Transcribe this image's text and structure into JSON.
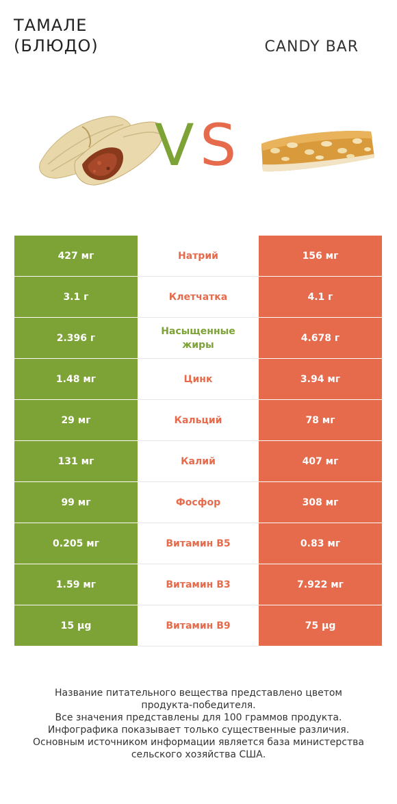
{
  "header": {
    "left_title_line1": "ТАМАЛЕ",
    "left_title_line2": "(БЛЮДО)",
    "right_title": "CANDY BAR",
    "vs_v": "V",
    "vs_s": "S"
  },
  "images": {
    "left": "tamale-image",
    "right": "candy-bar-image"
  },
  "colors": {
    "green": "#7da236",
    "red": "#e56b4c"
  },
  "rows": [
    {
      "left": "427 мг",
      "label": "Натрий",
      "right": "156 мг",
      "winner": "red"
    },
    {
      "left": "3.1 г",
      "label": "Клетчатка",
      "right": "4.1 г",
      "winner": "red"
    },
    {
      "left": "2.396 г",
      "label": "Насыщенные жиры",
      "right": "4.678 г",
      "winner": "green"
    },
    {
      "left": "1.48 мг",
      "label": "Цинк",
      "right": "3.94 мг",
      "winner": "red"
    },
    {
      "left": "29 мг",
      "label": "Кальций",
      "right": "78 мг",
      "winner": "red"
    },
    {
      "left": "131 мг",
      "label": "Калий",
      "right": "407 мг",
      "winner": "red"
    },
    {
      "left": "99 мг",
      "label": "Фосфор",
      "right": "308 мг",
      "winner": "red"
    },
    {
      "left": "0.205 мг",
      "label": "Витамин B5",
      "right": "0.83 мг",
      "winner": "red"
    },
    {
      "left": "1.59 мг",
      "label": "Витамин B3",
      "right": "7.922 мг",
      "winner": "red"
    },
    {
      "left": "15 µg",
      "label": "Витамин B9",
      "right": "75 µg",
      "winner": "red"
    }
  ],
  "footer": {
    "line1": "Название питательного вещества представлено цветом",
    "line2": "продукта-победителя.",
    "line3": "Все значения представлены для 100 граммов продукта.",
    "line4": "Инфографика показывает только существенные различия.",
    "line5": "Основным источником информации является база министерства",
    "line6": "сельского хозяйства США."
  }
}
